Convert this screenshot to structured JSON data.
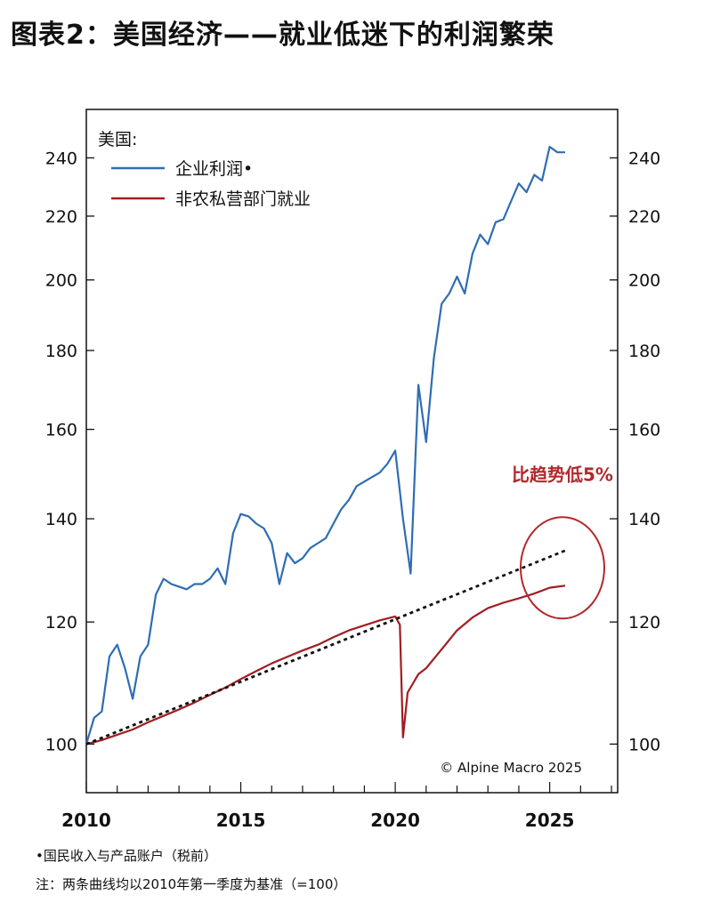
{
  "title": "图表2：美国经济——就业低迷下的利润繁荣",
  "footnotes": {
    "note1": "•国民收入与产品账户（税前）",
    "note2": "注：两条曲线均以2010年第一季度为基准（=100）"
  },
  "chart_data": {
    "type": "line",
    "y_scale": "log",
    "legend_header": "美国:",
    "legend_position": "top-left",
    "annotation": "比趋势低5%",
    "watermark": "© Alpine Macro 2025",
    "xlim": [
      2010,
      2027.2
    ],
    "ylim": [
      93,
      258
    ],
    "x_ticks": [
      {
        "label": "2010",
        "value": 2010
      },
      {
        "label": "2015",
        "value": 2015
      },
      {
        "label": "2020",
        "value": 2020
      },
      {
        "label": "2025",
        "value": 2025
      }
    ],
    "y_ticks": [
      {
        "label": "100",
        "value": 100
      },
      {
        "label": "120",
        "value": 120
      },
      {
        "label": "140",
        "value": 140
      },
      {
        "label": "160",
        "value": 160
      },
      {
        "label": "180",
        "value": 180
      },
      {
        "label": "200",
        "value": 200
      },
      {
        "label": "220",
        "value": 220
      },
      {
        "label": "240",
        "value": 240
      }
    ],
    "colors": {
      "profits": "#2e6db4",
      "employment": "#a01e22",
      "trend": "#111111",
      "annotation": "#b3282d"
    },
    "series": [
      {
        "name": "企业利润•",
        "key": "profits",
        "points": [
          [
            2010.0,
            100
          ],
          [
            2010.25,
            104
          ],
          [
            2010.5,
            105
          ],
          [
            2010.75,
            114
          ],
          [
            2011.0,
            116
          ],
          [
            2011.25,
            112
          ],
          [
            2011.5,
            107
          ],
          [
            2011.75,
            114
          ],
          [
            2012.0,
            116
          ],
          [
            2012.25,
            125
          ],
          [
            2012.5,
            128
          ],
          [
            2012.75,
            127
          ],
          [
            2013.0,
            126.5
          ],
          [
            2013.25,
            126
          ],
          [
            2013.5,
            127
          ],
          [
            2013.75,
            127
          ],
          [
            2014.0,
            128
          ],
          [
            2014.25,
            130
          ],
          [
            2014.5,
            127
          ],
          [
            2014.75,
            137
          ],
          [
            2015.0,
            141
          ],
          [
            2015.25,
            140.5
          ],
          [
            2015.5,
            139
          ],
          [
            2015.75,
            138
          ],
          [
            2016.0,
            135
          ],
          [
            2016.25,
            127
          ],
          [
            2016.5,
            133
          ],
          [
            2016.75,
            131
          ],
          [
            2017.0,
            132
          ],
          [
            2017.25,
            134
          ],
          [
            2017.5,
            135
          ],
          [
            2017.75,
            136
          ],
          [
            2018.0,
            139
          ],
          [
            2018.25,
            142
          ],
          [
            2018.5,
            144
          ],
          [
            2018.75,
            147
          ],
          [
            2019.0,
            148
          ],
          [
            2019.25,
            149
          ],
          [
            2019.5,
            150
          ],
          [
            2019.75,
            152
          ],
          [
            2020.0,
            155
          ],
          [
            2020.25,
            140
          ],
          [
            2020.5,
            129
          ],
          [
            2020.75,
            171
          ],
          [
            2021.0,
            157
          ],
          [
            2021.25,
            178
          ],
          [
            2021.5,
            193
          ],
          [
            2021.75,
            196
          ],
          [
            2022.0,
            201
          ],
          [
            2022.25,
            196
          ],
          [
            2022.5,
            208
          ],
          [
            2022.75,
            214
          ],
          [
            2023.0,
            211
          ],
          [
            2023.25,
            218
          ],
          [
            2023.5,
            219
          ],
          [
            2023.75,
            225
          ],
          [
            2024.0,
            231
          ],
          [
            2024.25,
            228
          ],
          [
            2024.5,
            234
          ],
          [
            2024.75,
            232
          ],
          [
            2025.0,
            244
          ],
          [
            2025.25,
            242
          ],
          [
            2025.5,
            242
          ]
        ]
      },
      {
        "name": "非农私营部门就业",
        "key": "employment",
        "points": [
          [
            2010.0,
            100
          ],
          [
            2010.5,
            100.6
          ],
          [
            2011.0,
            101.4
          ],
          [
            2011.5,
            102.2
          ],
          [
            2012.0,
            103.3
          ],
          [
            2012.5,
            104.3
          ],
          [
            2013.0,
            105.3
          ],
          [
            2013.5,
            106.4
          ],
          [
            2014.0,
            107.6
          ],
          [
            2014.5,
            108.8
          ],
          [
            2015.0,
            110.2
          ],
          [
            2015.5,
            111.5
          ],
          [
            2016.0,
            112.8
          ],
          [
            2016.5,
            113.9
          ],
          [
            2017.0,
            115.0
          ],
          [
            2017.5,
            116.0
          ],
          [
            2018.0,
            117.3
          ],
          [
            2018.5,
            118.5
          ],
          [
            2019.0,
            119.4
          ],
          [
            2019.5,
            120.3
          ],
          [
            2020.0,
            121.0
          ],
          [
            2020.15,
            119.5
          ],
          [
            2020.25,
            101
          ],
          [
            2020.4,
            108
          ],
          [
            2020.75,
            111
          ],
          [
            2021.0,
            112
          ],
          [
            2021.5,
            115.2
          ],
          [
            2022.0,
            118.5
          ],
          [
            2022.5,
            120.8
          ],
          [
            2023.0,
            122.5
          ],
          [
            2023.5,
            123.5
          ],
          [
            2024.0,
            124.3
          ],
          [
            2024.5,
            125.2
          ],
          [
            2025.0,
            126.3
          ],
          [
            2025.5,
            126.7
          ]
        ]
      },
      {
        "name": "",
        "key": "trend",
        "style": "dotted",
        "points": [
          [
            2010.0,
            100
          ],
          [
            2025.5,
            133.5
          ]
        ]
      }
    ]
  }
}
